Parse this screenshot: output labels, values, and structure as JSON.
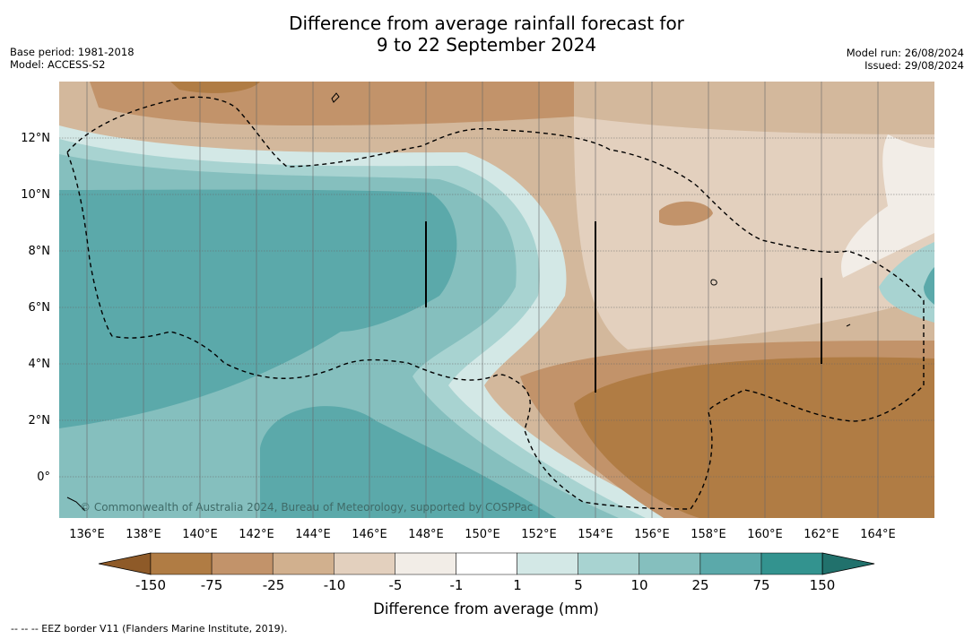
{
  "title_line1": "Difference from average rainfall forecast for",
  "title_line2": "9 to 22 September 2024",
  "base_period": "Base period: 1981-2018",
  "model": "Model: ACCESS-S2",
  "model_run": "Model run: 26/08/2024",
  "issued": "Issued: 29/08/2024",
  "copyright": "© Commonwealth of Australia 2024, Bureau of Meteorology, supported by COSPPac",
  "lon_ticks": [
    "136°E",
    "138°E",
    "140°E",
    "142°E",
    "144°E",
    "146°E",
    "148°E",
    "150°E",
    "152°E",
    "154°E",
    "156°E",
    "158°E",
    "160°E",
    "162°E",
    "164°E"
  ],
  "lat_ticks": [
    "12°N",
    "10°N",
    "8°N",
    "6°N",
    "4°N",
    "2°N",
    "0°"
  ],
  "colorbar": {
    "title": "Difference from average (mm)",
    "labels": [
      "-150",
      "-75",
      "-25",
      "-10",
      "-5",
      "-1",
      "1",
      "5",
      "10",
      "25",
      "75",
      "150"
    ],
    "colors": [
      "#8e5a28",
      "#b07c44",
      "#c2936a",
      "#d1b08e",
      "#e3d0be",
      "#f2ede7",
      "#ffffff",
      "#d3e8e6",
      "#a8d3d1",
      "#85bfbe",
      "#5ba9aa",
      "#33938f",
      "#21716c"
    ]
  },
  "footnote": "-- -- -- EEZ border V11 (Flanders Marine Institute, 2019)."
}
